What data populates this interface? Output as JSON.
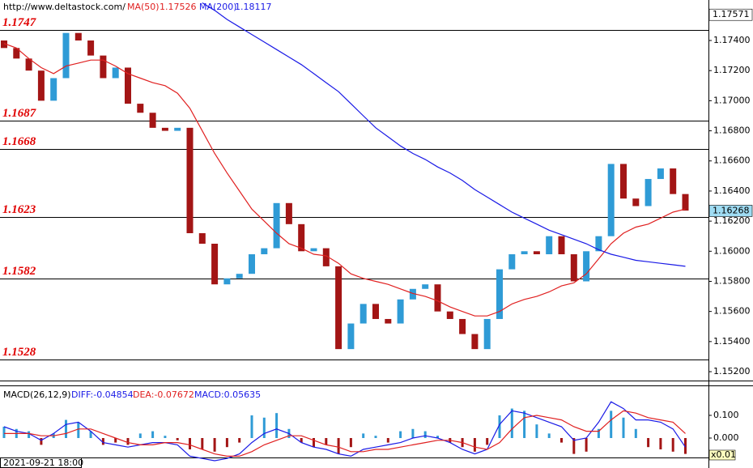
{
  "chart_data": [
    {
      "type": "candlestick",
      "source": "http://www.deltastock.com/",
      "x_label": "2021-09-21 18:00",
      "up_color": "#2f9bd6",
      "down_color": "#a31515",
      "open": [
        1.174,
        1.1735,
        1.1728,
        1.172,
        1.17,
        1.1715,
        1.1745,
        1.174,
        1.173,
        1.1715,
        1.1722,
        1.1698,
        1.1692,
        1.1682,
        1.168,
        1.1682,
        1.1612,
        1.1605,
        1.1578,
        1.1582,
        1.1585,
        1.1598,
        1.1602,
        1.1632,
        1.1618,
        1.16,
        1.1602,
        1.159,
        1.1535,
        1.1552,
        1.1565,
        1.1555,
        1.1552,
        1.1568,
        1.1575,
        1.1578,
        1.156,
        1.1555,
        1.1545,
        1.1535,
        1.1555,
        1.1588,
        1.1598,
        1.16,
        1.1598,
        1.161,
        1.1598,
        1.158,
        1.16,
        1.161,
        1.1658,
        1.1635,
        1.163,
        1.1648,
        1.1655,
        1.1638
      ],
      "close": [
        1.1735,
        1.1728,
        1.172,
        1.17,
        1.1715,
        1.1745,
        1.174,
        1.173,
        1.1715,
        1.1722,
        1.1698,
        1.1692,
        1.1682,
        1.168,
        1.1682,
        1.1612,
        1.1605,
        1.1578,
        1.1582,
        1.1585,
        1.1598,
        1.1602,
        1.1632,
        1.1618,
        1.16,
        1.1602,
        1.159,
        1.1535,
        1.1552,
        1.1565,
        1.1555,
        1.1552,
        1.1568,
        1.1575,
        1.1578,
        1.156,
        1.1555,
        1.1545,
        1.1535,
        1.1555,
        1.1588,
        1.1598,
        1.16,
        1.1598,
        1.161,
        1.1598,
        1.158,
        1.16,
        1.161,
        1.1658,
        1.1635,
        1.163,
        1.1648,
        1.1655,
        1.1638,
        1.1627
      ],
      "overlays": [
        {
          "name": "MA(50)",
          "value": 1.17526,
          "color": "#e02020",
          "values": [
            1.1738,
            1.1735,
            1.1728,
            1.1722,
            1.1718,
            1.1723,
            1.1725,
            1.1727,
            1.1727,
            1.1723,
            1.1718,
            1.1715,
            1.1712,
            1.171,
            1.1705,
            1.1695,
            1.168,
            1.1665,
            1.1652,
            1.164,
            1.1628,
            1.162,
            1.1612,
            1.1605,
            1.1602,
            1.1598,
            1.1597,
            1.1592,
            1.1585,
            1.1582,
            1.158,
            1.1578,
            1.1575,
            1.1572,
            1.157,
            1.1567,
            1.1563,
            1.156,
            1.1557,
            1.1557,
            1.156,
            1.1565,
            1.1568,
            1.157,
            1.1573,
            1.1577,
            1.1579,
            1.1585,
            1.1595,
            1.1605,
            1.1612,
            1.1616,
            1.1618,
            1.1622,
            1.1626,
            1.1628
          ]
        },
        {
          "name": "MA(200)",
          "value": 1.18117,
          "color": "#1a1ae6",
          "values": [
            null,
            null,
            null,
            null,
            null,
            null,
            null,
            null,
            null,
            null,
            null,
            null,
            null,
            null,
            null,
            null,
            1.1765,
            1.176,
            1.1754,
            1.1749,
            1.1744,
            1.1739,
            1.1734,
            1.1729,
            1.1724,
            1.1718,
            1.1712,
            1.1706,
            1.1698,
            1.169,
            1.1682,
            1.1676,
            1.167,
            1.1665,
            1.1661,
            1.1656,
            1.1652,
            1.1647,
            1.1641,
            1.1636,
            1.1631,
            1.1626,
            1.1622,
            1.1618,
            1.1614,
            1.1611,
            1.1608,
            1.1605,
            1.1601,
            1.1598,
            1.1596,
            1.1594,
            1.1593,
            1.1592,
            1.1591,
            1.159
          ]
        }
      ],
      "ylim": [
        1.15141,
        1.17669
      ],
      "yticks": [
        {
          "value": 1.174,
          "label": "1.17400"
        },
        {
          "value": 1.172,
          "label": "1.17200"
        },
        {
          "value": 1.17,
          "label": "1.17000"
        },
        {
          "value": 1.168,
          "label": "1.16800"
        },
        {
          "value": 1.166,
          "label": "1.16600"
        },
        {
          "value": 1.164,
          "label": "1.16400"
        },
        {
          "value": 1.162,
          "label": "1.16200"
        },
        {
          "value": 1.16,
          "label": "1.16000"
        },
        {
          "value": 1.158,
          "label": "1.15800"
        },
        {
          "value": 1.156,
          "label": "1.15600"
        },
        {
          "value": 1.154,
          "label": "1.15400"
        },
        {
          "value": 1.152,
          "label": "1.15200"
        }
      ],
      "levels": [
        1.1747,
        1.1687,
        1.1668,
        1.1623,
        1.1582,
        1.1528
      ],
      "price_marks": [
        1.17571,
        1.16268
      ]
    },
    {
      "type": "macd",
      "title": "MACD(26,12,9)",
      "readouts": [
        {
          "label": "DIFF:-0.04854",
          "color": "#1a1ae6"
        },
        {
          "label": "DEA:-0.07672",
          "color": "#e02020"
        },
        {
          "label": "MACD:0.05635",
          "color": "#1a1ae6"
        }
      ],
      "scale_label": "x0.01",
      "ylim": [
        -0.0857,
        0.232
      ],
      "yticks": [
        {
          "value": 0.1,
          "label": "0.100"
        },
        {
          "value": 0,
          "label": "0.000"
        }
      ],
      "pos_color": "#2f9bd6",
      "neg_color": "#a31515",
      "histogram": [
        0.05,
        0.04,
        0.03,
        -0.03,
        0.02,
        0.08,
        0.07,
        0.03,
        -0.03,
        -0.02,
        -0.03,
        0.02,
        0.03,
        0.01,
        -0.01,
        -0.05,
        -0.05,
        -0.06,
        -0.04,
        -0.02,
        0.1,
        0.09,
        0.11,
        0.04,
        -0.02,
        -0.04,
        -0.03,
        -0.07,
        -0.04,
        0.02,
        0.01,
        -0.02,
        0.03,
        0.04,
        0.03,
        0.01,
        -0.02,
        -0.04,
        -0.06,
        -0.03,
        0.1,
        0.13,
        0.12,
        0.06,
        0.02,
        -0.02,
        -0.07,
        -0.06,
        0.04,
        0.12,
        0.09,
        0.04,
        -0.04,
        -0.05,
        -0.06,
        -0.07
      ],
      "diff": {
        "color": "#1a1ae6",
        "values": [
          0.05,
          0.03,
          0.02,
          -0.01,
          0.02,
          0.06,
          0.07,
          0.03,
          -0.02,
          -0.03,
          -0.04,
          -0.03,
          -0.02,
          -0.02,
          -0.03,
          -0.08,
          -0.09,
          -0.1,
          -0.09,
          -0.07,
          -0.02,
          0.02,
          0.04,
          0.02,
          -0.02,
          -0.04,
          -0.05,
          -0.07,
          -0.08,
          -0.05,
          -0.04,
          -0.03,
          -0.02,
          0.0,
          0.01,
          0.0,
          -0.02,
          -0.05,
          -0.07,
          -0.05,
          0.06,
          0.12,
          0.11,
          0.09,
          0.07,
          0.05,
          -0.01,
          0.0,
          0.07,
          0.16,
          0.13,
          0.08,
          0.08,
          0.07,
          0.04,
          -0.04
        ]
      },
      "dea": {
        "color": "#e02020",
        "values": [
          0.02,
          0.02,
          0.02,
          0.01,
          0.01,
          0.02,
          0.04,
          0.04,
          0.02,
          0.0,
          -0.02,
          -0.03,
          -0.03,
          -0.02,
          -0.02,
          -0.03,
          -0.05,
          -0.07,
          -0.08,
          -0.08,
          -0.06,
          -0.03,
          -0.01,
          0.01,
          0.01,
          -0.01,
          -0.03,
          -0.04,
          -0.06,
          -0.06,
          -0.05,
          -0.05,
          -0.04,
          -0.03,
          -0.02,
          -0.01,
          -0.01,
          -0.02,
          -0.04,
          -0.05,
          -0.02,
          0.04,
          0.09,
          0.1,
          0.09,
          0.08,
          0.05,
          0.03,
          0.03,
          0.08,
          0.12,
          0.11,
          0.09,
          0.08,
          0.07,
          0.02
        ]
      }
    }
  ]
}
